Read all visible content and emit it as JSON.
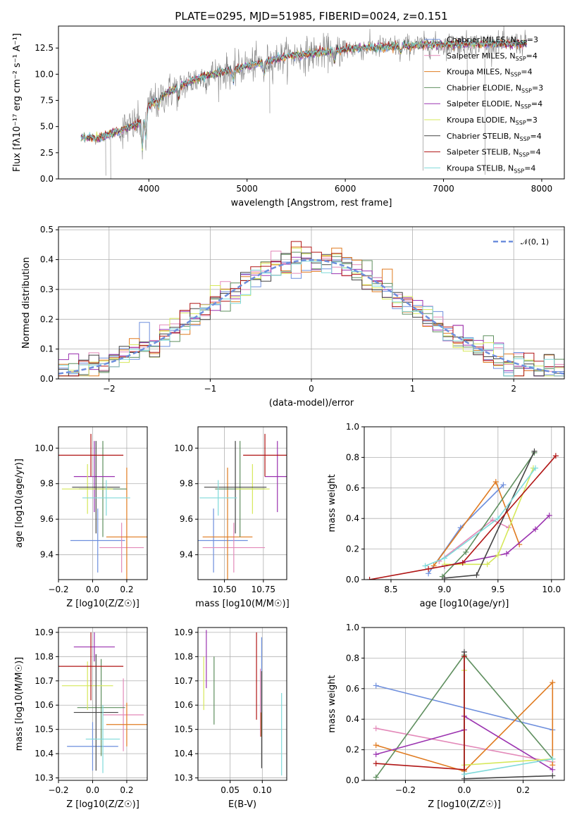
{
  "colors": {
    "Chabrier MILES": "#6e8fdd",
    "Salpeter MILES": "#e389b9",
    "Kroupa MILES": "#e07b20",
    "Chabrier ELODIE": "#5f8f5f",
    "Salpeter ELODIE": "#9b33b0",
    "Kroupa ELODIE": "#d6e85a",
    "Chabrier STELIB": "#444444",
    "Salpeter STELIB": "#b01515",
    "Kroupa STELIB": "#7fdada",
    "data": "#808080",
    "normal": "#6e8fdd"
  },
  "chart_data": [
    {
      "id": "spectrum",
      "type": "line",
      "title": "PLATE=0295, MJD=51985, FIBERID=0024, z=0.151",
      "xlabel": "wavelength [Angstrom, rest frame]",
      "ylabel": "Flux [fλ10⁻¹⁷ erg cm⁻² s⁻¹ A⁻¹]",
      "xlim": [
        3080,
        8230
      ],
      "ylim": [
        0,
        14.6
      ],
      "xticks": [
        4000,
        5000,
        6000,
        7000,
        8000
      ],
      "yticks": [
        0.0,
        2.5,
        5.0,
        7.5,
        10.0,
        12.5
      ],
      "grid": false,
      "legend_position": "top-right",
      "legend": [
        "Chabrier MILES, NSSP=3",
        "Salpeter MILES, NSSP=4",
        "Kroupa MILES, NSSP=4",
        "Chabrier ELODIE, NSSP=3",
        "Salpeter ELODIE, NSSP=4",
        "Kroupa ELODIE, NSSP=3",
        "Chabrier STELIB, NSSP=4",
        "Salpeter STELIB, NSSP=4",
        "Kroupa STELIB, NSSP=4"
      ],
      "continuum": [
        [
          3300,
          4.0
        ],
        [
          3500,
          3.9
        ],
        [
          3700,
          4.6
        ],
        [
          3900,
          5.3
        ],
        [
          4000,
          7.0
        ],
        [
          4200,
          8.3
        ],
        [
          4400,
          9.2
        ],
        [
          4600,
          9.9
        ],
        [
          4800,
          10.3
        ],
        [
          5000,
          10.8
        ],
        [
          5200,
          11.2
        ],
        [
          5400,
          11.7
        ],
        [
          5600,
          11.9
        ],
        [
          5800,
          12.1
        ],
        [
          6000,
          12.4
        ],
        [
          6200,
          12.5
        ],
        [
          6400,
          12.6
        ],
        [
          6600,
          12.7
        ],
        [
          6800,
          12.8
        ],
        [
          7000,
          12.8
        ],
        [
          7200,
          12.9
        ],
        [
          7400,
          12.9
        ],
        [
          7600,
          12.9
        ],
        [
          7850,
          12.95
        ]
      ]
    },
    {
      "id": "residuals",
      "type": "histogram",
      "xlabel": "(data-model)/error",
      "ylabel": "Normed distribution",
      "xlim": [
        -2.5,
        2.5
      ],
      "ylim": [
        0,
        0.51
      ],
      "xticks": [
        -2,
        -1,
        0,
        1,
        2
      ],
      "yticks": [
        0.0,
        0.1,
        0.2,
        0.3,
        0.4,
        0.5
      ],
      "grid": true,
      "legend_position": "top-right",
      "legend": "𝒩(0, 1)"
    },
    {
      "id": "age-vs-Z",
      "type": "errorbar",
      "xlabel": "Z [log10(Z/Z☉)]",
      "ylabel": "age [log10(age/yr)]",
      "xlim": [
        -0.2,
        0.32
      ],
      "ylim": [
        9.26,
        10.12
      ],
      "xticks": [
        -0.2,
        0.0,
        0.2
      ],
      "yticks": [
        9.4,
        9.6,
        9.8,
        10.0
      ],
      "grid": true,
      "points": [
        {
          "m": "Chabrier MILES",
          "x": 0.03,
          "xe": 0.16,
          "y": 9.48,
          "ye": 0.18
        },
        {
          "m": "Salpeter MILES",
          "x": 0.17,
          "xe": 0.13,
          "y": 9.44,
          "ye": 0.14
        },
        {
          "m": "Kroupa MILES",
          "x": 0.2,
          "xe": 0.12,
          "y": 9.5,
          "ye": 0.39
        },
        {
          "m": "Chabrier ELODIE",
          "x": 0.06,
          "xe": 0.14,
          "y": 9.77,
          "ye": 0.27
        },
        {
          "m": "Salpeter ELODIE",
          "x": 0.01,
          "xe": 0.12,
          "y": 9.84,
          "ye": 0.2
        },
        {
          "m": "Kroupa ELODIE",
          "x": -0.03,
          "xe": 0.15,
          "y": 9.77,
          "ye": 0.14
        },
        {
          "m": "Chabrier STELIB",
          "x": 0.02,
          "xe": 0.14,
          "y": 9.78,
          "ye": 0.26
        },
        {
          "m": "Salpeter STELIB",
          "x": -0.01,
          "xe": 0.19,
          "y": 9.96,
          "ye": 0.12
        },
        {
          "m": "Kroupa STELIB",
          "x": 0.08,
          "xe": 0.14,
          "y": 9.72,
          "ye": 0.1
        }
      ]
    },
    {
      "id": "age-vs-mass",
      "type": "errorbar",
      "xlabel": "mass [log10(M/M☉)]",
      "xlim": [
        10.33,
        10.9
      ],
      "ylim": [
        9.26,
        10.12
      ],
      "xticks": [
        10.5,
        10.75
      ],
      "yticks": [
        9.4,
        9.6,
        9.8,
        10.0
      ],
      "grid": true,
      "points": [
        {
          "m": "Chabrier MILES",
          "x": 10.43,
          "xe": 0.22,
          "y": 9.48,
          "ye": 0.18
        },
        {
          "m": "Salpeter MILES",
          "x": 10.56,
          "xe": 0.2,
          "y": 9.44,
          "ye": 0.14
        },
        {
          "m": "Kroupa MILES",
          "x": 10.52,
          "xe": 0.16,
          "y": 9.5,
          "ye": 0.39
        },
        {
          "m": "Chabrier ELODIE",
          "x": 10.6,
          "xe": 0.16,
          "y": 9.77,
          "ye": 0.27
        },
        {
          "m": "Salpeter ELODIE",
          "x": 10.84,
          "xe": 0.08,
          "y": 9.84,
          "ye": 0.2
        },
        {
          "m": "Kroupa ELODIE",
          "x": 10.68,
          "xe": 0.11,
          "y": 9.77,
          "ye": 0.14
        },
        {
          "m": "Chabrier STELIB",
          "x": 10.57,
          "xe": 0.2,
          "y": 9.78,
          "ye": 0.26
        },
        {
          "m": "Salpeter STELIB",
          "x": 10.76,
          "xe": 0.14,
          "y": 9.96,
          "ye": 0.12
        },
        {
          "m": "Kroupa STELIB",
          "x": 10.46,
          "xe": 0.12,
          "y": 9.72,
          "ye": 0.1
        }
      ]
    },
    {
      "id": "weight-vs-age",
      "type": "line",
      "xlabel": "age [log10(age/yr)]",
      "ylabel": "mass weight",
      "xlim": [
        8.25,
        10.12
      ],
      "ylim": [
        0,
        1
      ],
      "xticks": [
        8.5,
        9.0,
        9.5,
        10.0
      ],
      "yticks": [
        0.0,
        0.2,
        0.4,
        0.6,
        0.8,
        1.0
      ],
      "grid": true,
      "series": [
        {
          "m": "Chabrier MILES",
          "x": [
            8.85,
            9.15,
            9.55
          ],
          "y": [
            0.04,
            0.34,
            0.62
          ]
        },
        {
          "m": "Salpeter MILES",
          "x": [
            8.95,
            9.45,
            9.6
          ],
          "y": [
            0.12,
            0.39,
            0.34
          ]
        },
        {
          "m": "Kroupa MILES",
          "x": [
            8.9,
            9.48,
            9.7
          ],
          "y": [
            0.09,
            0.64,
            0.23
          ]
        },
        {
          "m": "Chabrier ELODIE",
          "x": [
            8.98,
            9.2,
            9.84
          ],
          "y": [
            0.02,
            0.18,
            0.83
          ]
        },
        {
          "m": "Salpeter ELODIE",
          "x": [
            9.0,
            9.58,
            9.85,
            9.98
          ],
          "y": [
            0.09,
            0.17,
            0.33,
            0.42
          ]
        },
        {
          "m": "Kroupa ELODIE",
          "x": [
            9.0,
            9.4,
            9.5,
            9.83
          ],
          "y": [
            0.1,
            0.1,
            0.16,
            0.73
          ]
        },
        {
          "m": "Chabrier STELIB",
          "x": [
            9.0,
            9.3,
            9.84
          ],
          "y": [
            0.01,
            0.03,
            0.84
          ]
        },
        {
          "m": "Salpeter STELIB",
          "x": [
            8.3,
            8.85,
            9.17,
            10.04
          ],
          "y": [
            0.0,
            0.07,
            0.11,
            0.81
          ]
        },
        {
          "m": "Kroupa STELIB",
          "x": [
            8.82,
            9.0,
            9.5,
            9.85
          ],
          "y": [
            0.09,
            0.14,
            0.4,
            0.73
          ]
        }
      ]
    },
    {
      "id": "mass-vs-Z",
      "type": "errorbar",
      "xlabel": "Z [log10(Z/Z☉)]",
      "ylabel": "mass [log10(M/M☉)]",
      "xlim": [
        -0.2,
        0.32
      ],
      "ylim": [
        10.29,
        10.92
      ],
      "xticks": [
        -0.2,
        0.0,
        0.2
      ],
      "yticks": [
        10.3,
        10.4,
        10.5,
        10.6,
        10.7,
        10.8,
        10.9
      ],
      "grid": true,
      "points": [
        {
          "m": "Chabrier MILES",
          "x": 0.0,
          "xe": 0.15,
          "y": 10.43,
          "ye": 0.1
        },
        {
          "m": "Salpeter MILES",
          "x": 0.18,
          "xe": 0.12,
          "y": 10.56,
          "ye": 0.15
        },
        {
          "m": "Kroupa MILES",
          "x": 0.2,
          "xe": 0.12,
          "y": 10.52,
          "ye": 0.09
        },
        {
          "m": "Chabrier ELODIE",
          "x": 0.05,
          "xe": 0.14,
          "y": 10.59,
          "ye": 0.2
        },
        {
          "m": "Salpeter ELODIE",
          "x": 0.01,
          "xe": 0.12,
          "y": 10.84,
          "ye": 0.06
        },
        {
          "m": "Kroupa ELODIE",
          "x": -0.03,
          "xe": 0.15,
          "y": 10.68,
          "ye": 0.1
        },
        {
          "m": "Chabrier STELIB",
          "x": 0.02,
          "xe": 0.13,
          "y": 10.57,
          "ye": 0.24
        },
        {
          "m": "Salpeter STELIB",
          "x": -0.01,
          "xe": 0.19,
          "y": 10.76,
          "ye": 0.14
        },
        {
          "m": "Kroupa STELIB",
          "x": 0.06,
          "xe": 0.1,
          "y": 10.46,
          "ye": 0.14
        }
      ]
    },
    {
      "id": "mass-vs-ebv",
      "type": "errorbar",
      "xlabel": "E(B-V)",
      "xlim": [
        0.0,
        0.138
      ],
      "ylim": [
        10.29,
        10.92
      ],
      "xticks": [
        0.05,
        0.1
      ],
      "yticks": [
        10.3,
        10.4,
        10.5,
        10.6,
        10.7,
        10.8,
        10.9
      ],
      "grid": true,
      "points": [
        {
          "m": "Chabrier MILES",
          "x": 0.099,
          "y": 10.7,
          "ye": 0.18
        },
        {
          "m": "Salpeter MILES",
          "x": 0.097,
          "y": 10.61,
          "ye": 0.14
        },
        {
          "m": "Kroupa MILES",
          "x": 0.098,
          "y": 10.52,
          "ye": 0.05
        },
        {
          "m": "Chabrier ELODIE",
          "x": 0.025,
          "y": 10.66,
          "ye": 0.14
        },
        {
          "m": "Salpeter ELODIE",
          "x": 0.013,
          "y": 10.79,
          "ye": 0.12
        },
        {
          "m": "Kroupa ELODIE",
          "x": 0.009,
          "y": 10.69,
          "ye": 0.11
        },
        {
          "m": "Chabrier STELIB",
          "x": 0.099,
          "y": 10.54,
          "ye": 0.2
        },
        {
          "m": "Salpeter STELIB",
          "x": 0.091,
          "y": 10.72,
          "ye": 0.18
        },
        {
          "m": "Kroupa STELIB",
          "x": 0.13,
          "y": 10.48,
          "ye": 0.17
        }
      ]
    },
    {
      "id": "weight-vs-Z",
      "type": "line",
      "xlabel": "Z [log10(Z/Z☉)]",
      "ylabel": "mass weight",
      "xlim": [
        -0.34,
        0.34
      ],
      "ylim": [
        0,
        1
      ],
      "xticks": [
        -0.2,
        0.0,
        0.2
      ],
      "yticks": [
        0.0,
        0.2,
        0.4,
        0.6,
        0.8,
        1.0
      ],
      "grid": true,
      "series": [
        {
          "m": "Chabrier MILES",
          "x": [
            -0.3,
            0.3
          ],
          "y": [
            0.62,
            0.33
          ]
        },
        {
          "m": "Salpeter MILES",
          "x": [
            -0.3,
            0.3
          ],
          "y": [
            0.34,
            0.12
          ]
        },
        {
          "m": "Kroupa MILES",
          "x": [
            -0.3,
            0.0,
            0.3,
            0.3
          ],
          "y": [
            0.23,
            0.06,
            0.64,
            0.1
          ]
        },
        {
          "m": "Chabrier ELODIE",
          "x": [
            -0.3,
            0.0,
            0.3
          ],
          "y": [
            0.02,
            0.82,
            0.14
          ]
        },
        {
          "m": "Salpeter ELODIE",
          "x": [
            -0.3,
            0.0,
            0.0,
            0.3
          ],
          "y": [
            0.17,
            0.33,
            0.42,
            0.07
          ]
        },
        {
          "m": "Kroupa ELODIE",
          "x": [
            0.0,
            0.0,
            0.3
          ],
          "y": [
            0.72,
            0.1,
            0.14
          ]
        },
        {
          "m": "Chabrier STELIB",
          "x": [
            0.0,
            0.0,
            0.3
          ],
          "y": [
            0.84,
            0.01,
            0.03
          ]
        },
        {
          "m": "Salpeter STELIB",
          "x": [
            -0.3,
            0.0,
            0.0
          ],
          "y": [
            0.11,
            0.07,
            0.81
          ]
        },
        {
          "m": "Kroupa STELIB",
          "x": [
            0.0,
            0.3
          ],
          "y": [
            0.04,
            0.14
          ]
        }
      ]
    }
  ]
}
